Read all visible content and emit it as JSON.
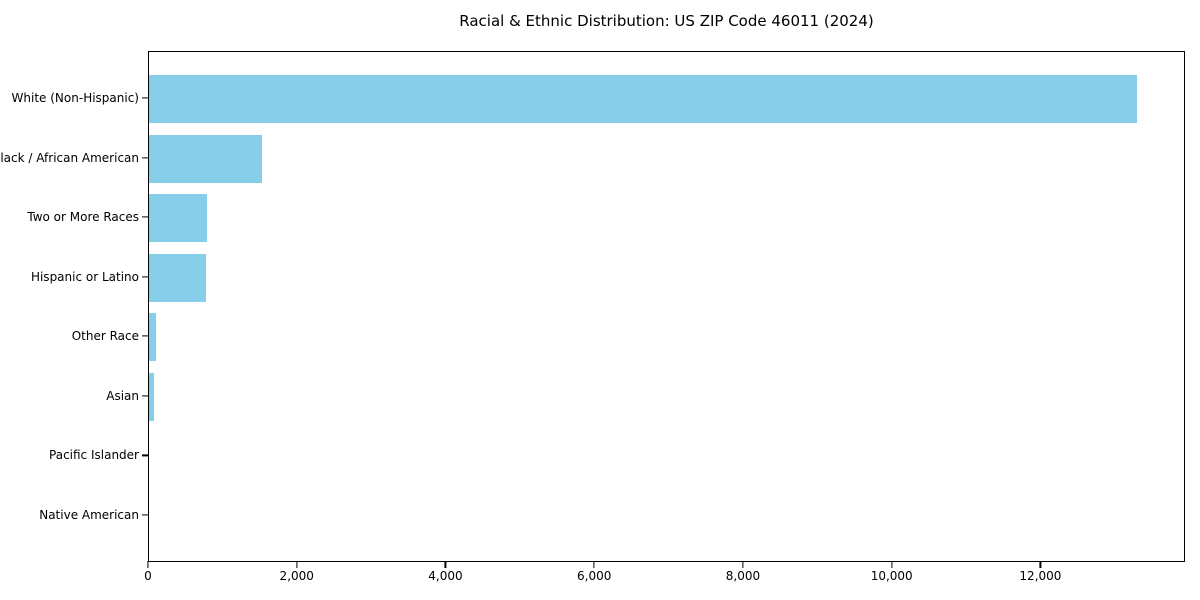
{
  "figure": {
    "title": "Racial & Ethnic Distribution: US ZIP Code 46011 (2024)",
    "background_color": "#FFFFFF",
    "spine_color": "#000000",
    "text_color": "#000000"
  },
  "chart_data": {
    "type": "bar",
    "orientation": "horizontal",
    "title": "Racial & Ethnic Distribution: US ZIP Code 46011 (2024)",
    "categories": [
      "White (Non-Hispanic)",
      "Black / African American",
      "Two or More Races",
      "Hispanic or Latino",
      "Other Race",
      "Asian",
      "Pacific Islander",
      "Native American"
    ],
    "values": [
      13280,
      1520,
      780,
      765,
      90,
      70,
      0,
      0
    ],
    "bar_color": "#87CEEB",
    "xlabel": "",
    "ylabel": "",
    "xlim": [
      0,
      13944
    ],
    "xticks": [
      0,
      2000,
      4000,
      6000,
      8000,
      10000,
      12000
    ],
    "xtick_labels": [
      "0",
      "2,000",
      "4,000",
      "6,000",
      "8,000",
      "10,000",
      "12,000"
    ],
    "grid": false,
    "legend": null,
    "frame": "all-sides"
  }
}
